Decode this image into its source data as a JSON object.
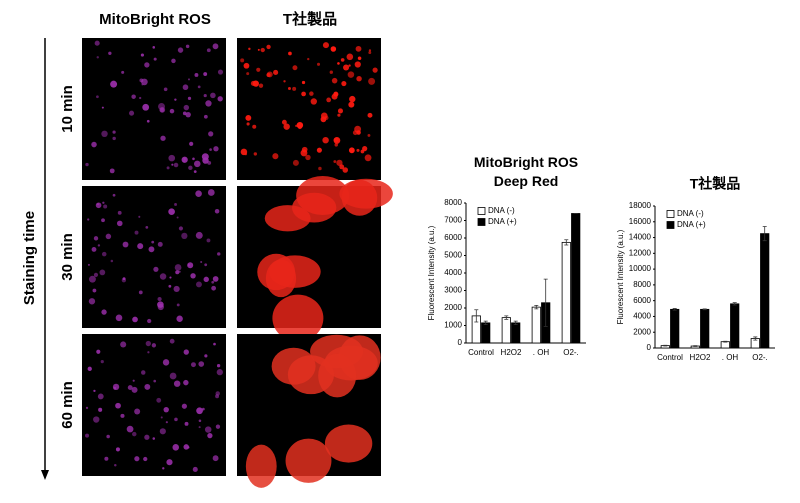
{
  "figure": {
    "column_headers": [
      "MitoBright ROS",
      "T社製品"
    ],
    "row_labels": [
      "10 min",
      "30 min",
      "60 min"
    ],
    "axis_label": "Staining time"
  },
  "chart_data": [
    {
      "type": "bar",
      "title": "MitoBright ROS Deep Red",
      "ylabel": "Fluorescent Intensity (a.u.)",
      "categories": [
        "Control",
        "H2O2",
        ". OH",
        "O2-."
      ],
      "series": [
        {
          "name": "DNA (-)",
          "color": "#ffffff",
          "values": [
            1550,
            1450,
            2050,
            5750
          ],
          "errors": [
            350,
            100,
            100,
            150
          ]
        },
        {
          "name": "DNA (+)",
          "color": "#000000",
          "values": [
            1150,
            1150,
            2300,
            7400
          ],
          "errors": [
            100,
            100,
            1350,
            0
          ]
        }
      ],
      "ylim": [
        0,
        8000
      ],
      "yticks": [
        0,
        1000,
        2000,
        3000,
        4000,
        5000,
        6000,
        7000,
        8000
      ],
      "legend": "upper left"
    },
    {
      "type": "bar",
      "title": "T社製品",
      "ylabel": "Fluorescent Intensity (a.u.)",
      "categories": [
        "Control",
        "H2O2",
        ". OH",
        "O2-."
      ],
      "series": [
        {
          "name": "DNA (-)",
          "color": "#ffffff",
          "values": [
            300,
            250,
            800,
            1200
          ],
          "errors": [
            50,
            50,
            50,
            200
          ]
        },
        {
          "name": "DNA (+)",
          "color": "#000000",
          "values": [
            4900,
            4900,
            5600,
            14500
          ],
          "errors": [
            100,
            50,
            150,
            900
          ]
        }
      ],
      "ylim": [
        0,
        18000
      ],
      "yticks": [
        0,
        2000,
        4000,
        6000,
        8000,
        10000,
        12000,
        14000,
        16000,
        18000
      ],
      "legend": "upper left"
    }
  ]
}
